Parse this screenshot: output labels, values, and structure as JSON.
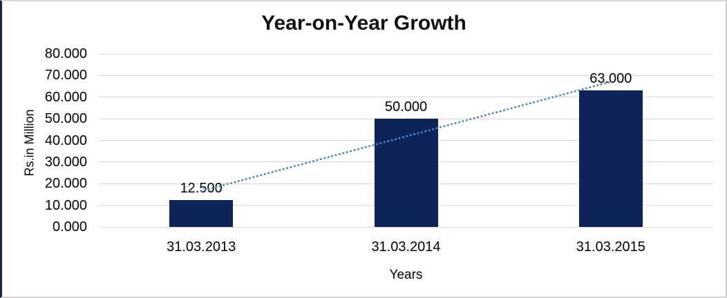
{
  "chart_data": {
    "type": "bar",
    "title": "Year-on-Year Growth",
    "xlabel": "Years",
    "ylabel": "Rs.in Million",
    "categories": [
      "31.03.2013",
      "31.03.2014",
      "31.03.2015"
    ],
    "values": [
      12.5,
      50,
      63
    ],
    "data_labels": [
      "12.500",
      "50.000",
      "63.000"
    ],
    "ytick_labels": [
      "0.000",
      "10.000",
      "20.000",
      "30.000",
      "40.000",
      "50.000",
      "60.000",
      "70.000",
      "80.000"
    ],
    "ytick_step": 10,
    "ylim": [
      0,
      80
    ],
    "grid": "horizontal",
    "legend_position": "none",
    "trendline": {
      "type": "linear",
      "style": "dotted"
    },
    "colors": {
      "bar_fill": "#0e2358",
      "trendline": "#4a86c6",
      "gridline": "#d9d9d9",
      "text": "#000000"
    }
  }
}
